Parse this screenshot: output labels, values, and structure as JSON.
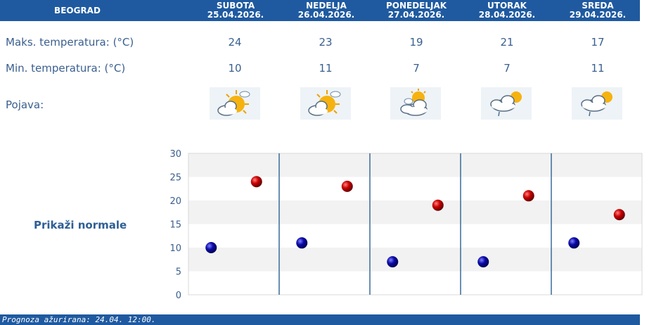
{
  "header": {
    "city": "BEOGRAD",
    "days": [
      {
        "name": "SUBOTA",
        "date": "25.04.2026."
      },
      {
        "name": "NEDELJA",
        "date": "26.04.2026."
      },
      {
        "name": "PONEDELJAK",
        "date": "27.04.2026."
      },
      {
        "name": "UTORAK",
        "date": "28.04.2026."
      },
      {
        "name": "SREDA",
        "date": "29.04.2026."
      }
    ]
  },
  "rows": {
    "max_label": "Maks. temperatura: (°C)",
    "min_label": "Min. temperatura: (°C)",
    "phenomenon_label": "Pojava:",
    "max": [
      "24",
      "23",
      "19",
      "21",
      "17"
    ],
    "min": [
      "10",
      "11",
      "7",
      "7",
      "11"
    ],
    "icons": [
      "sun-cloud-icon",
      "sun-cloud-icon",
      "cloud-sun-icon",
      "cloud-rain-sun-icon",
      "cloud-rain-sun-icon"
    ]
  },
  "normals_link": "Prikaži normale",
  "colors": {
    "header_bg": "#1f5aa0",
    "max_dot": "#cc0000",
    "min_dot": "#0a0aa8"
  },
  "chart_data": {
    "type": "scatter",
    "categories": [
      "SUBOTA",
      "NEDELJA",
      "PONEDELJAK",
      "UTORAK",
      "SREDA"
    ],
    "series": [
      {
        "values": [
          24,
          23,
          19,
          21,
          17
        ]
      },
      {
        "values": [
          10,
          11,
          7,
          7,
          11
        ]
      }
    ],
    "ylim": [
      0,
      30
    ],
    "yticks": [
      "0",
      "5",
      "10",
      "15",
      "20",
      "25",
      "30"
    ],
    "grid": "alternating horizontal bands"
  },
  "footer": {
    "text": "Prognoza ažurirana:  24.04. 12:00."
  }
}
